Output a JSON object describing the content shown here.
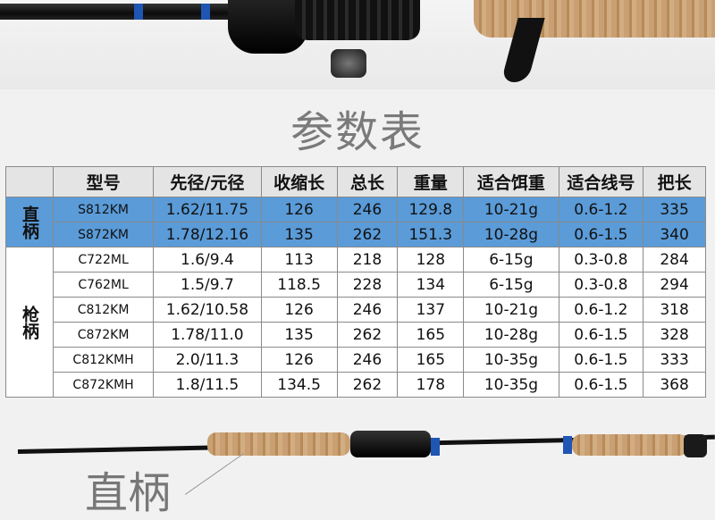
{
  "title": "参数表",
  "table": {
    "headers": [
      "",
      "型号",
      "先径/元径",
      "收缩长",
      "总长",
      "重量",
      "适合饵重",
      "适合线号",
      "把长"
    ],
    "groups": [
      {
        "label": "直柄",
        "highlight_color": "#5a9bd8",
        "rows": [
          [
            "S812KM",
            "1.62/11.75",
            "126",
            "246",
            "129.8",
            "10-21g",
            "0.6-1.2",
            "335"
          ],
          [
            "S872KM",
            "1.78/12.16",
            "135",
            "262",
            "151.3",
            "10-28g",
            "0.6-1.5",
            "340"
          ]
        ]
      },
      {
        "label": "枪柄",
        "rows": [
          [
            "C722ML",
            "1.6/9.4",
            "113",
            "218",
            "128",
            "6-15g",
            "0.3-0.8",
            "284"
          ],
          [
            "C762ML",
            "1.5/9.7",
            "118.5",
            "228",
            "134",
            "6-15g",
            "0.3-0.8",
            "294"
          ],
          [
            "C812KM",
            "1.62/10.58",
            "126",
            "246",
            "137",
            "10-21g",
            "0.6-1.2",
            "318"
          ],
          [
            "C872KM",
            "1.78/11.0",
            "135",
            "262",
            "165",
            "10-28g",
            "0.6-1.5",
            "328"
          ],
          [
            "C812KMH",
            "2.0/11.3",
            "126",
            "246",
            "165",
            "10-35g",
            "0.6-1.5",
            "333"
          ],
          [
            "C872KMH",
            "1.8/11.5",
            "134.5",
            "262",
            "178",
            "10-35g",
            "0.6-1.5",
            "368"
          ]
        ]
      }
    ]
  },
  "bottom_label": "直柄"
}
